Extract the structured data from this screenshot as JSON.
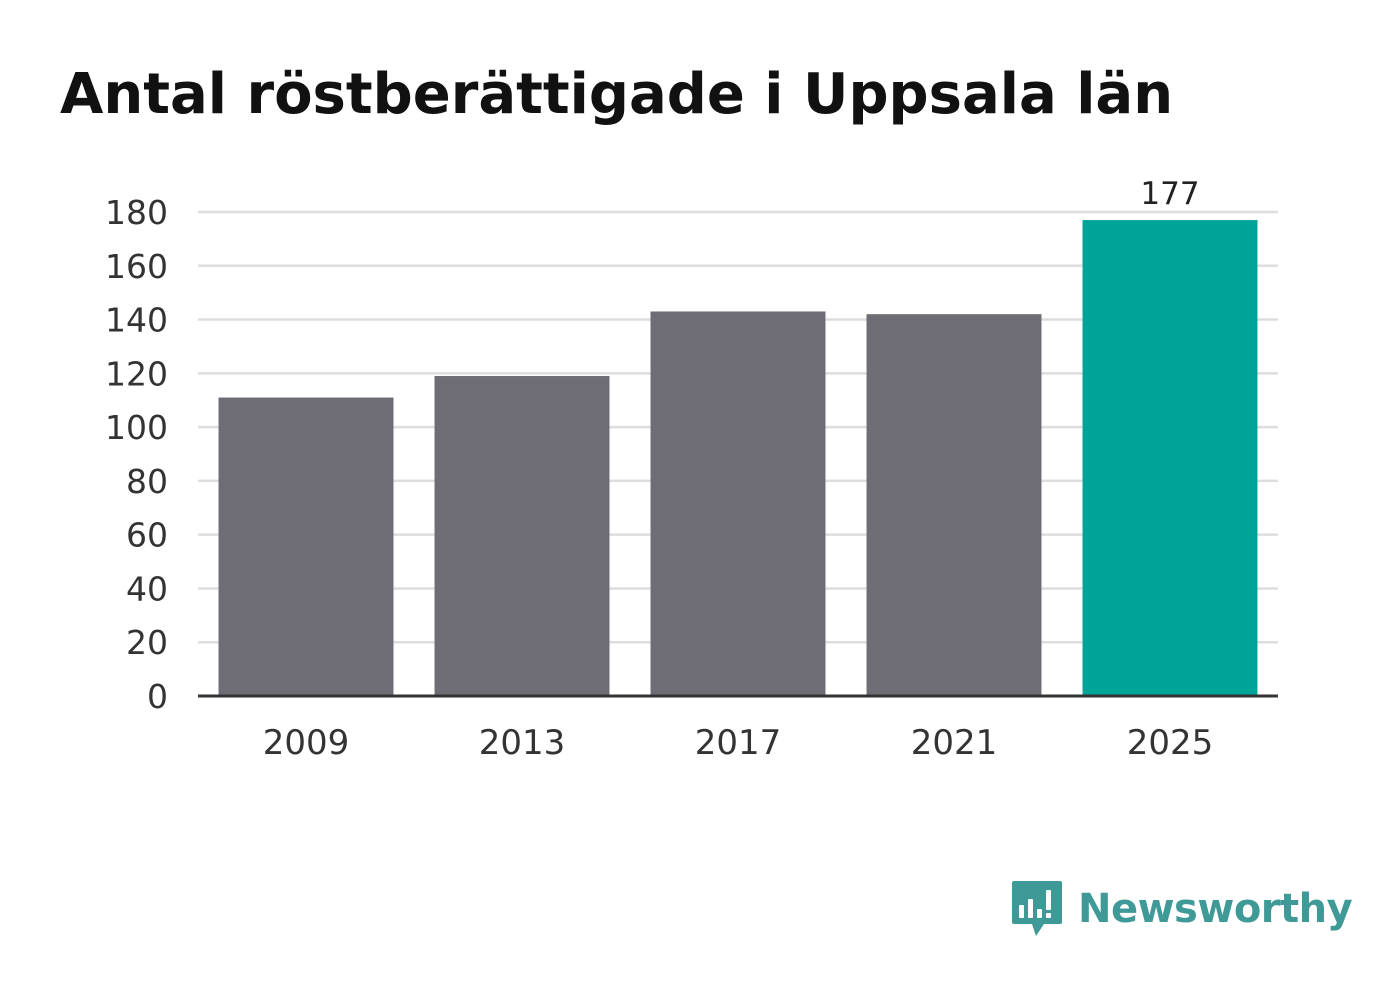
{
  "colors": {
    "default_bar": "#6e6d75",
    "highlight_bar": "#00a398",
    "gridline": "#dedede",
    "axis": "#333333",
    "brand": "#3f9a97"
  },
  "brand": {
    "name": "Newsworthy",
    "icon": "newsworthy-bar-chart-speech-bubble-icon"
  },
  "chart_data": {
    "type": "bar",
    "title": "Antal röstberättigade i Uppsala län",
    "xlabel": "",
    "ylabel": "",
    "categories": [
      "2009",
      "2013",
      "2017",
      "2021",
      "2025"
    ],
    "values": [
      111,
      119,
      143,
      142,
      177
    ],
    "highlight_index": 4,
    "data_labels": [
      null,
      null,
      null,
      null,
      "177"
    ],
    "ylim": [
      0,
      180
    ],
    "yticks": [
      0,
      20,
      40,
      60,
      80,
      100,
      120,
      140,
      160,
      180
    ],
    "grid": true,
    "legend": "none"
  }
}
